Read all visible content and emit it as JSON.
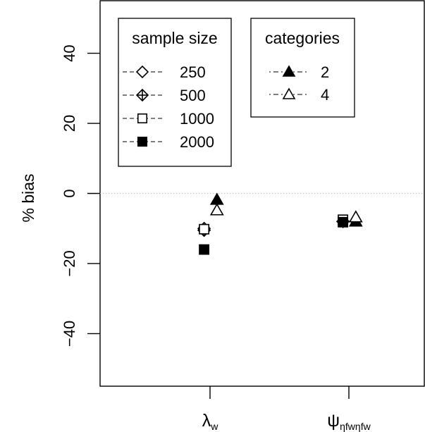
{
  "chart_data": {
    "type": "scatter",
    "ylabel": "% bias",
    "ylim": [
      -55,
      55
    ],
    "yticks": [
      -40,
      -20,
      0,
      20,
      40
    ],
    "ytick_labels": [
      "−40",
      "−20",
      "0",
      "20",
      "40"
    ],
    "reference_line": {
      "y": 0,
      "style": "dotted"
    },
    "categories": [
      {
        "symbol": "λ",
        "sub": "w",
        "sub2": ""
      },
      {
        "symbol": "ψ",
        "sub": "ηfw",
        "sub2": "ηfw"
      }
    ],
    "series": [
      {
        "group": "sample size",
        "name": "250",
        "marker": "diamond-open",
        "offset": -0.3,
        "values": [
          -10,
          -8
        ]
      },
      {
        "group": "sample size",
        "name": "500",
        "marker": "diamond-plus",
        "offset": -0.3,
        "values": [
          -10.5,
          -8
        ]
      },
      {
        "group": "sample size",
        "name": "1000",
        "marker": "square-open",
        "offset": -0.3,
        "values": [
          -10.2,
          -7.5
        ]
      },
      {
        "group": "sample size",
        "name": "2000",
        "marker": "square-filled",
        "offset": -0.3,
        "values": [
          -16,
          -8.2
        ]
      },
      {
        "group": "categories",
        "name": "2",
        "marker": "triangle-filled",
        "offset": 0.35,
        "values": [
          -1.8,
          -8
        ]
      },
      {
        "group": "categories",
        "name": "4",
        "marker": "triangle-open",
        "offset": 0.35,
        "values": [
          -4.8,
          -6.8
        ]
      }
    ],
    "legends": [
      {
        "title": "sample size",
        "position": "top-left",
        "entries": [
          {
            "label": "250",
            "marker": "diamond-open",
            "line": "dashed"
          },
          {
            "label": "500",
            "marker": "diamond-plus",
            "line": "dashed"
          },
          {
            "label": "1000",
            "marker": "square-open",
            "line": "dashed"
          },
          {
            "label": "2000",
            "marker": "square-filled",
            "line": "dashed"
          }
        ]
      },
      {
        "title": "categories",
        "position": "top-center",
        "entries": [
          {
            "label": "2",
            "marker": "triangle-filled",
            "line": "dotdash"
          },
          {
            "label": "4",
            "marker": "triangle-open",
            "line": "dotdash"
          }
        ]
      }
    ]
  }
}
